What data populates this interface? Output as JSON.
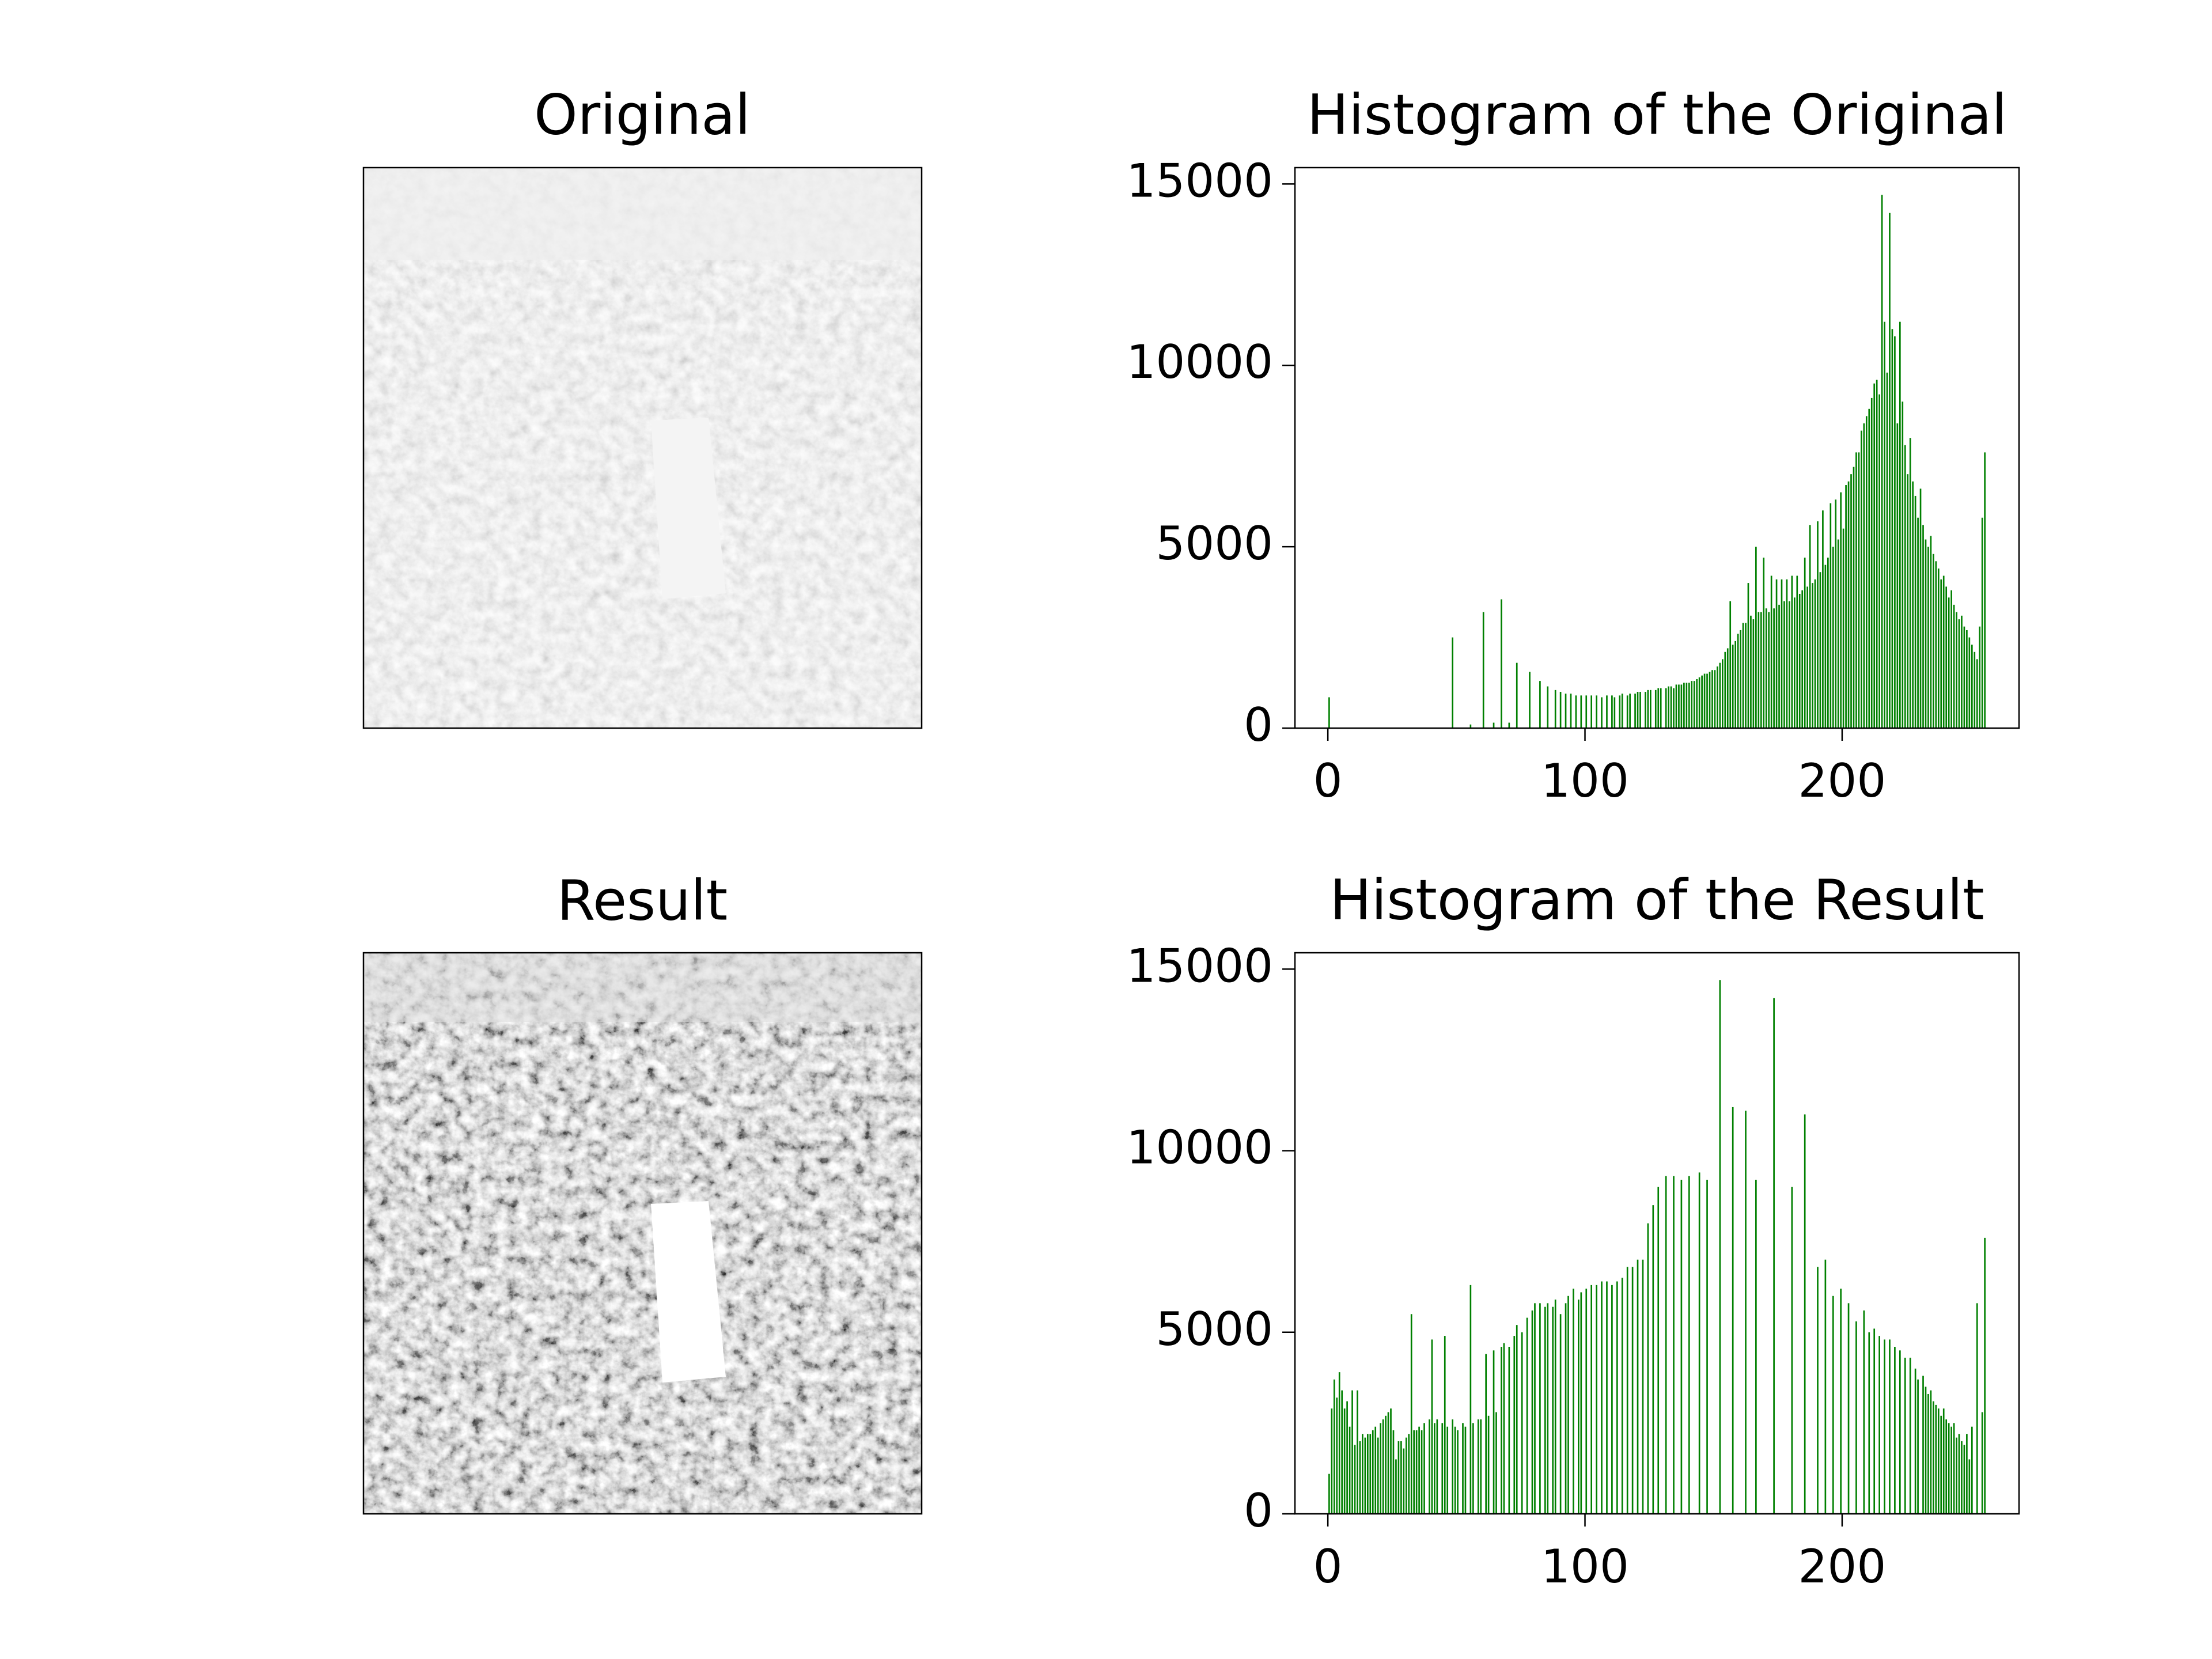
{
  "chart_data": [
    {
      "type": "image",
      "title": "Original"
    },
    {
      "type": "histogram",
      "title": "Histogram of the Original",
      "color": "#008000",
      "bins": [
        0,
        1,
        2,
        3,
        4,
        5,
        6,
        7,
        8,
        9,
        10,
        11,
        12,
        13,
        14,
        15,
        16,
        17,
        18,
        19,
        20,
        21,
        22,
        23,
        24,
        25,
        26,
        27,
        28,
        29,
        30,
        31,
        32,
        33,
        34,
        35,
        36,
        37,
        38,
        39,
        40,
        41,
        42,
        43,
        44,
        45,
        46,
        47,
        48,
        49,
        50,
        51,
        52,
        53,
        54,
        55,
        56,
        57,
        58,
        59,
        60,
        61,
        62,
        63,
        64,
        65,
        66,
        67,
        68,
        69,
        70,
        71,
        72,
        73,
        74,
        75,
        76,
        77,
        78,
        79,
        80,
        81,
        82,
        83,
        84,
        85,
        86,
        87,
        88,
        89,
        90,
        91,
        92,
        93,
        94,
        95,
        96,
        97,
        98,
        99,
        100,
        101,
        102,
        103,
        104,
        105,
        106,
        107,
        108,
        109,
        110,
        111,
        112,
        113,
        114,
        115,
        116,
        117,
        118,
        119,
        120,
        121,
        122,
        123,
        124,
        125,
        126,
        127,
        128,
        129,
        130,
        131,
        132,
        133,
        134,
        135,
        136,
        137,
        138,
        139,
        140,
        141,
        142,
        143,
        144,
        145,
        146,
        147,
        148,
        149,
        150,
        151,
        152,
        153,
        154,
        155,
        156,
        157,
        158,
        159,
        160,
        161,
        162,
        163,
        164,
        165,
        166,
        167,
        168,
        169,
        170,
        171,
        172,
        173,
        174,
        175,
        176,
        177,
        178,
        179,
        180,
        181,
        182,
        183,
        184,
        185,
        186,
        187,
        188,
        189,
        190,
        191,
        192,
        193,
        194,
        195,
        196,
        197,
        198,
        199,
        200,
        201,
        202,
        203,
        204,
        205,
        206,
        207,
        208,
        209,
        210,
        211,
        212,
        213,
        214,
        215,
        216,
        217,
        218,
        219,
        220,
        221,
        222,
        223,
        224,
        225,
        226,
        227,
        228,
        229,
        230,
        231,
        232,
        233,
        234,
        235,
        236,
        237,
        238,
        239,
        240,
        241,
        242,
        243,
        244,
        245,
        246,
        247,
        248,
        249,
        250,
        251,
        252,
        253,
        254,
        255,
        256
      ],
      "values": [
        850,
        0,
        0,
        0,
        0,
        0,
        0,
        0,
        0,
        0,
        0,
        0,
        0,
        0,
        0,
        0,
        0,
        0,
        0,
        0,
        0,
        0,
        0,
        0,
        0,
        0,
        0,
        0,
        0,
        0,
        0,
        0,
        0,
        0,
        0,
        0,
        0,
        0,
        0,
        0,
        0,
        0,
        0,
        0,
        0,
        0,
        0,
        0,
        2500,
        0,
        0,
        0,
        0,
        0,
        0,
        100,
        0,
        0,
        0,
        0,
        3200,
        0,
        0,
        0,
        150,
        0,
        0,
        3550,
        0,
        0,
        150,
        0,
        0,
        1800,
        0,
        0,
        0,
        0,
        1550,
        0,
        0,
        0,
        1300,
        0,
        0,
        1150,
        0,
        0,
        1050,
        0,
        1000,
        0,
        950,
        0,
        950,
        0,
        900,
        0,
        900,
        0,
        900,
        0,
        900,
        0,
        900,
        0,
        850,
        0,
        900,
        0,
        900,
        850,
        0,
        900,
        950,
        0,
        900,
        950,
        0,
        950,
        1000,
        1000,
        0,
        1000,
        1050,
        1050,
        0,
        1050,
        1100,
        1100,
        0,
        1100,
        1150,
        1150,
        1100,
        1200,
        1200,
        1200,
        1250,
        1250,
        1250,
        1300,
        1300,
        1350,
        1400,
        1450,
        1500,
        1500,
        1550,
        1600,
        1600,
        1700,
        1800,
        1900,
        2100,
        2200,
        3500,
        2300,
        2400,
        2600,
        2700,
        2900,
        2900,
        4000,
        3100,
        3000,
        5000,
        3200,
        3200,
        4700,
        3300,
        3200,
        4200,
        3300,
        4100,
        3400,
        4100,
        3500,
        4100,
        3500,
        4200,
        3600,
        4200,
        3700,
        3800,
        4700,
        3900,
        5600,
        4000,
        4100,
        5700,
        4300,
        6000,
        4500,
        4700,
        6200,
        5000,
        6300,
        5200,
        6500,
        5500,
        6700,
        6800,
        7000,
        7200,
        7600,
        7600,
        8200,
        8400,
        8600,
        8800,
        9100,
        9500,
        9600,
        9200,
        14700,
        11200,
        9800,
        14200,
        11000,
        10800,
        8400,
        11200,
        9000,
        7800,
        7000,
        8000,
        6800,
        6400,
        5800,
        6600,
        5600,
        5200,
        5000,
        5300,
        4800,
        4600,
        4400,
        4100,
        4200,
        3900,
        3600,
        3800,
        3400,
        3200,
        3000,
        3100,
        2800,
        2700,
        2500,
        2300,
        2100,
        1900,
        2800,
        5800,
        7600
      ],
      "xlim": [
        -12.8,
        268.8
      ],
      "ylim": [
        0,
        15450
      ],
      "xticks": [
        0,
        100,
        200
      ],
      "yticks": [
        0,
        5000,
        10000,
        15000
      ]
    },
    {
      "type": "image",
      "title": "Result"
    },
    {
      "type": "histogram",
      "title": "Histogram of the Result",
      "color": "#008000",
      "bins": [
        0,
        1,
        2,
        3,
        4,
        5,
        6,
        7,
        8,
        9,
        10,
        11,
        12,
        13,
        14,
        15,
        16,
        17,
        18,
        19,
        20,
        21,
        22,
        23,
        24,
        25,
        26,
        27,
        28,
        29,
        30,
        31,
        32,
        33,
        34,
        35,
        36,
        37,
        38,
        39,
        40,
        41,
        42,
        43,
        44,
        45,
        46,
        47,
        48,
        49,
        50,
        51,
        52,
        53,
        54,
        55,
        56,
        57,
        58,
        59,
        60,
        61,
        62,
        63,
        64,
        65,
        66,
        67,
        68,
        69,
        70,
        71,
        72,
        73,
        74,
        75,
        76,
        77,
        78,
        79,
        80,
        81,
        82,
        83,
        84,
        85,
        86,
        87,
        88,
        89,
        90,
        91,
        92,
        93,
        94,
        95,
        96,
        97,
        98,
        99,
        100,
        101,
        102,
        103,
        104,
        105,
        106,
        107,
        108,
        109,
        110,
        111,
        112,
        113,
        114,
        115,
        116,
        117,
        118,
        119,
        120,
        121,
        122,
        123,
        124,
        125,
        126,
        127,
        128,
        129,
        130,
        131,
        132,
        133,
        134,
        135,
        136,
        137,
        138,
        139,
        140,
        141,
        142,
        143,
        144,
        145,
        146,
        147,
        148,
        149,
        150,
        151,
        152,
        153,
        154,
        155,
        156,
        157,
        158,
        159,
        160,
        161,
        162,
        163,
        164,
        165,
        166,
        167,
        168,
        169,
        170,
        171,
        172,
        173,
        174,
        175,
        176,
        177,
        178,
        179,
        180,
        181,
        182,
        183,
        184,
        185,
        186,
        187,
        188,
        189,
        190,
        191,
        192,
        193,
        194,
        195,
        196,
        197,
        198,
        199,
        200,
        201,
        202,
        203,
        204,
        205,
        206,
        207,
        208,
        209,
        210,
        211,
        212,
        213,
        214,
        215,
        216,
        217,
        218,
        219,
        220,
        221,
        222,
        223,
        224,
        225,
        226,
        227,
        228,
        229,
        230,
        231,
        232,
        233,
        234,
        235,
        236,
        237,
        238,
        239,
        240,
        241,
        242,
        243,
        244,
        245,
        246,
        247,
        248,
        249,
        250,
        251,
        252,
        253,
        254,
        255,
        256
      ],
      "values": [
        1100,
        2900,
        3700,
        3200,
        3900,
        3400,
        2900,
        3100,
        2400,
        3400,
        1900,
        3400,
        2000,
        2200,
        2100,
        2200,
        2200,
        2300,
        2400,
        2100,
        2500,
        2600,
        2700,
        2800,
        2900,
        2300,
        1500,
        2000,
        2000,
        1800,
        2100,
        2200,
        5500,
        2300,
        2300,
        2400,
        2300,
        2500,
        0,
        2600,
        4800,
        2500,
        2600,
        0,
        2500,
        4900,
        2400,
        0,
        2600,
        2400,
        2300,
        0,
        2500,
        2400,
        0,
        6300,
        2500,
        0,
        2600,
        2600,
        0,
        4400,
        2700,
        0,
        4500,
        2800,
        0,
        4600,
        4700,
        0,
        4600,
        0,
        4900,
        5200,
        0,
        5000,
        0,
        5400,
        0,
        5600,
        5800,
        0,
        5800,
        0,
        5700,
        5800,
        0,
        5700,
        5900,
        0,
        5500,
        0,
        5800,
        6000,
        0,
        6200,
        0,
        5900,
        6100,
        0,
        6200,
        0,
        6300,
        0,
        6300,
        0,
        6400,
        0,
        6400,
        0,
        6300,
        0,
        6400,
        0,
        6500,
        0,
        6800,
        0,
        6800,
        0,
        7000,
        0,
        7000,
        0,
        8000,
        0,
        8500,
        0,
        9000,
        0,
        0,
        9300,
        0,
        0,
        9300,
        0,
        0,
        9200,
        0,
        0,
        9300,
        0,
        0,
        0,
        9400,
        0,
        0,
        9200,
        0,
        0,
        0,
        0,
        14700,
        0,
        0,
        0,
        0,
        11200,
        0,
        0,
        0,
        0,
        11100,
        0,
        0,
        0,
        9200,
        0,
        0,
        0,
        0,
        0,
        0,
        14200,
        0,
        0,
        0,
        0,
        0,
        0,
        9000,
        0,
        0,
        0,
        0,
        11000,
        0,
        0,
        0,
        0,
        6800,
        0,
        0,
        7000,
        0,
        0,
        6000,
        0,
        0,
        6200,
        0,
        0,
        5800,
        0,
        0,
        5300,
        0,
        0,
        5600,
        0,
        5000,
        0,
        5100,
        0,
        4900,
        0,
        4800,
        0,
        4800,
        0,
        4600,
        0,
        4500,
        0,
        4300,
        0,
        4300,
        0,
        4000,
        3700,
        0,
        3800,
        3500,
        3300,
        3400,
        3100,
        3000,
        2900,
        2700,
        2900,
        2600,
        2500,
        2400,
        2500,
        2100,
        2200,
        2000,
        1900,
        2200,
        1500,
        2400,
        0,
        5800,
        0,
        2800,
        7600
      ],
      "xlim": [
        -12.8,
        268.8
      ],
      "ylim": [
        0,
        15450
      ],
      "xticks": [
        0,
        100,
        200
      ],
      "yticks": [
        0,
        5000,
        10000,
        15000
      ]
    }
  ]
}
